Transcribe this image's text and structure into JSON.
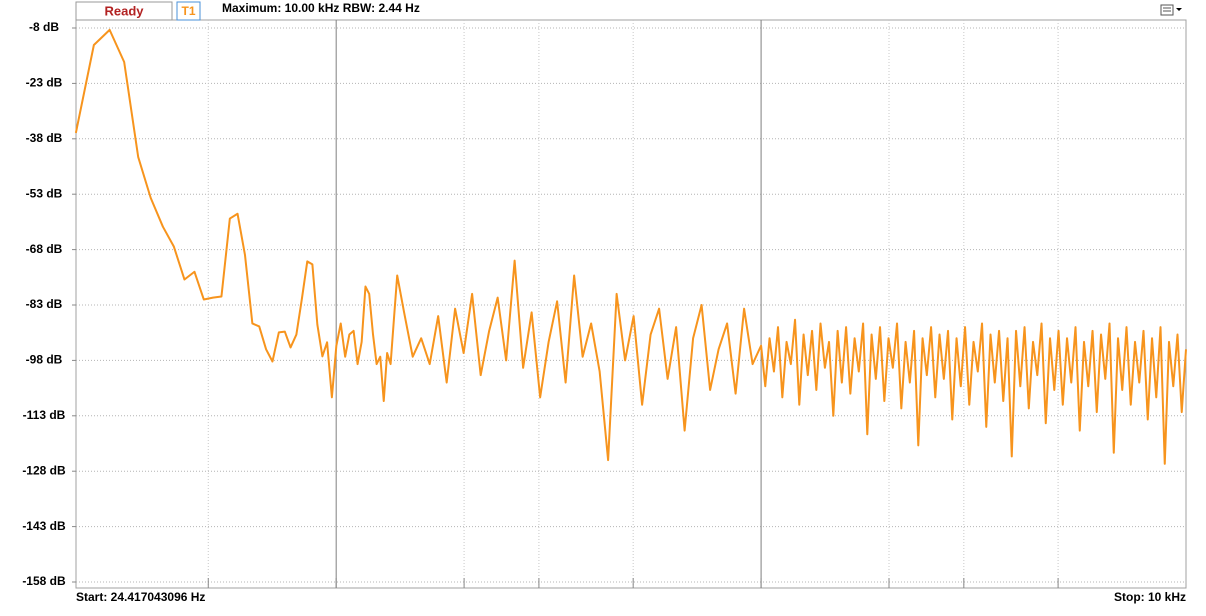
{
  "toolbar": {
    "status": "Ready",
    "trace": "T1",
    "info": "Maximum: 10.00 kHz RBW: 2.44 Hz"
  },
  "chart_data": {
    "type": "line",
    "xscale": "log",
    "color": "#f7941d",
    "grid": true,
    "start_label": "Start: 24.417043096 Hz",
    "stop_label": "Stop: 10 kHz",
    "xlim": [
      24.417043096,
      10000
    ],
    "xticks": [
      50,
      100,
      200,
      300,
      500,
      1000,
      2000,
      3000,
      5000
    ],
    "ylim": [
      -158,
      -8
    ],
    "yticks": [
      {
        "value": -8,
        "label": "-8 dB"
      },
      {
        "value": -23,
        "label": "-23 dB"
      },
      {
        "value": -38,
        "label": "-38 dB"
      },
      {
        "value": -53,
        "label": "-53 dB"
      },
      {
        "value": -68,
        "label": "-68 dB"
      },
      {
        "value": -83,
        "label": "-83 dB"
      },
      {
        "value": -98,
        "label": "-98 dB"
      },
      {
        "value": -113,
        "label": "-113 dB"
      },
      {
        "value": -128,
        "label": "-128 dB"
      },
      {
        "value": -143,
        "label": "-143 dB"
      },
      {
        "value": -158,
        "label": "-158 dB"
      }
    ],
    "x": [
      24.4,
      26.9,
      29.3,
      31.7,
      34.2,
      36.6,
      39.1,
      41.5,
      43.95,
      46.4,
      48.8,
      51.3,
      53.7,
      56.2,
      58.6,
      61.0,
      63.5,
      65.9,
      68.4,
      70.8,
      73.3,
      75.7,
      78.1,
      80.6,
      83.0,
      85.5,
      87.9,
      90.3,
      92.8,
      95.2,
      97.7,
      100.1,
      102.5,
      105.0,
      107.4,
      109.9,
      112.3,
      114.8,
      117.2,
      119.6,
      122.1,
      124.5,
      127.0,
      129.4,
      131.8,
      134.3,
      136.7,
      139.2,
      144.5,
      151.4,
      158.5,
      166.0,
      173.8,
      182.0,
      190.5,
      199.5,
      208.9,
      218.8,
      229.1,
      239.9,
      251.2,
      263.0,
      275.4,
      288.4,
      302.0,
      316.2,
      331.1,
      346.7,
      363.1,
      380.2,
      398.1,
      416.9,
      436.5,
      457.1,
      478.6,
      501.2,
      524.8,
      549.5,
      575.4,
      602.6,
      631.0,
      660.7,
      691.8,
      724.4,
      758.6,
      794.3,
      831.8,
      871.0,
      912.0,
      955.0,
      1000,
      1023,
      1047,
      1072,
      1096,
      1122,
      1148,
      1175,
      1202,
      1230,
      1259,
      1288,
      1318,
      1349,
      1380,
      1413,
      1445,
      1479,
      1514,
      1549,
      1585,
      1622,
      1660,
      1698,
      1738,
      1778,
      1820,
      1862,
      1905,
      1950,
      1995,
      2042,
      2089,
      2138,
      2188,
      2239,
      2291,
      2344,
      2399,
      2455,
      2512,
      2570,
      2630,
      2692,
      2754,
      2818,
      2884,
      2951,
      3020,
      3090,
      3162,
      3236,
      3311,
      3388,
      3467,
      3548,
      3631,
      3715,
      3802,
      3890,
      3981,
      4074,
      4169,
      4266,
      4365,
      4467,
      4571,
      4677,
      4786,
      4898,
      5012,
      5129,
      5248,
      5370,
      5495,
      5623,
      5754,
      5888,
      6026,
      6166,
      6310,
      6457,
      6607,
      6761,
      6918,
      7079,
      7244,
      7413,
      7586,
      7762,
      7943,
      8128,
      8318,
      8511,
      8710,
      8913,
      9120,
      9333,
      9550,
      9772,
      10000
    ],
    "values": [
      -36.4,
      -12.6,
      -8.5,
      -17.2,
      -42.9,
      -54,
      -61.8,
      -67.2,
      -76.1,
      -74,
      -81.5,
      -81,
      -80.7,
      -59.6,
      -58.3,
      -69.4,
      -88,
      -88.8,
      -95,
      -98.3,
      -90.4,
      -90.2,
      -94.5,
      -91,
      -81.5,
      -71.2,
      -72,
      -88.3,
      -96.9,
      -93.1,
      -108,
      -94,
      -88,
      -97,
      -91,
      -90,
      -99,
      -93,
      -78,
      -80,
      -91,
      -99,
      -97,
      -109,
      -96,
      -99,
      -87,
      -75,
      -85,
      -97,
      -92,
      -99,
      -86,
      -104,
      -84,
      -96,
      -80,
      -102,
      -90,
      -81,
      -98,
      -71,
      -100,
      -85,
      -108,
      -93,
      -82,
      -104,
      -75,
      -97,
      -88,
      -101,
      -125,
      -80,
      -98,
      -86,
      -110,
      -91,
      -84,
      -103,
      -89,
      -117,
      -92,
      -83,
      -106,
      -95,
      -88,
      -107,
      -84,
      -99,
      -94,
      -105,
      -92,
      -101,
      -89,
      -108,
      -93,
      -99,
      -87,
      -110,
      -91,
      -102,
      -90,
      -106,
      -88,
      -100,
      -93,
      -113,
      -90,
      -104,
      -89,
      -107,
      -92,
      -101,
      -88,
      -118,
      -91,
      -103,
      -89,
      -109,
      -92,
      -100,
      -88,
      -111,
      -93,
      -104,
      -90,
      -121,
      -92,
      -102,
      -89,
      -108,
      -91,
      -103,
      -90,
      -114,
      -92,
      -105,
      -89,
      -110,
      -93,
      -101,
      -88,
      -116,
      -91,
      -104,
      -90,
      -109,
      -92,
      -124,
      -90,
      -105,
      -89,
      -111,
      -93,
      -102,
      -88,
      -115,
      -92,
      -106,
      -90,
      -110,
      -92,
      -104,
      -89,
      -117,
      -93,
      -105,
      -90,
      -112,
      -91,
      -103,
      -88,
      -123,
      -92,
      -106,
      -89,
      -110,
      -93,
      -104,
      -90,
      -114,
      -92,
      -108,
      -89,
      -126,
      -93,
      -105,
      -91,
      -112,
      -95
    ]
  }
}
